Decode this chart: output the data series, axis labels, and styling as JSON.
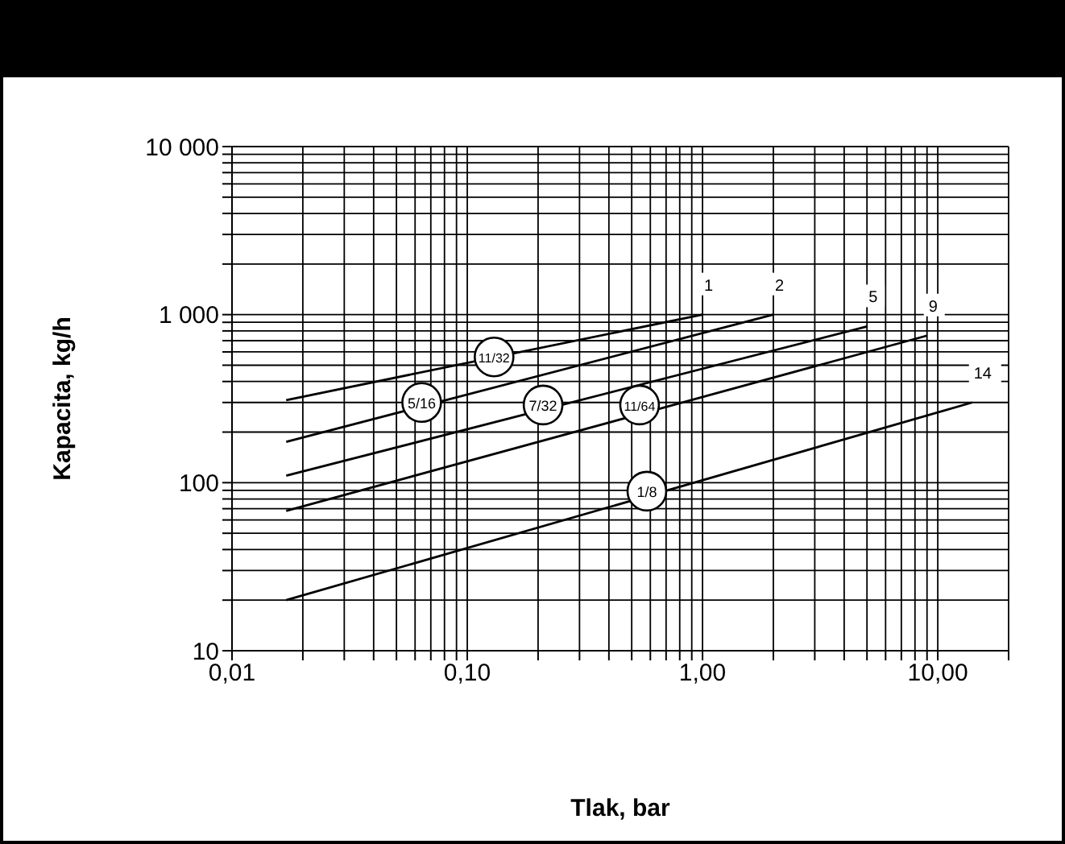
{
  "chart_data": {
    "type": "line",
    "xlabel": "Tlak, bar",
    "ylabel": "Kapacita, kg/h",
    "log": "xy",
    "grid": true,
    "marker": "none",
    "line_style": "solid",
    "xlim": [
      0.01,
      20
    ],
    "ylim": [
      10,
      10000
    ],
    "xticks": [
      {
        "value": 0.01,
        "label": "0,01"
      },
      {
        "value": 0.02,
        "label": null
      },
      {
        "value": 0.03,
        "label": null
      },
      {
        "value": 0.04,
        "label": null
      },
      {
        "value": 0.05,
        "label": null
      },
      {
        "value": 0.06,
        "label": null
      },
      {
        "value": 0.07,
        "label": null
      },
      {
        "value": 0.08,
        "label": null
      },
      {
        "value": 0.09,
        "label": null
      },
      {
        "value": 0.1,
        "label": "0,10"
      },
      {
        "value": 0.2,
        "label": null
      },
      {
        "value": 0.3,
        "label": null
      },
      {
        "value": 0.4,
        "label": null
      },
      {
        "value": 0.5,
        "label": null
      },
      {
        "value": 0.6,
        "label": null
      },
      {
        "value": 0.7,
        "label": null
      },
      {
        "value": 0.8,
        "label": null
      },
      {
        "value": 0.9,
        "label": null
      },
      {
        "value": 1,
        "label": "1,00"
      },
      {
        "value": 2,
        "label": null
      },
      {
        "value": 3,
        "label": null
      },
      {
        "value": 4,
        "label": null
      },
      {
        "value": 5,
        "label": null
      },
      {
        "value": 6,
        "label": null
      },
      {
        "value": 7,
        "label": null
      },
      {
        "value": 8,
        "label": null
      },
      {
        "value": 9,
        "label": null
      },
      {
        "value": 10,
        "label": "10,00"
      },
      {
        "value": 20,
        "label": null
      }
    ],
    "yticks": [
      10,
      {
        "value": 20,
        "label": null
      },
      {
        "value": 30,
        "label": null
      },
      {
        "value": 40,
        "label": null
      },
      {
        "value": 50,
        "label": null
      },
      {
        "value": 60,
        "label": null
      },
      {
        "value": 70,
        "label": null
      },
      {
        "value": 80,
        "label": null
      },
      {
        "value": 90,
        "label": null
      },
      100,
      {
        "value": 200,
        "label": null
      },
      {
        "value": 300,
        "label": null
      },
      {
        "value": 400,
        "label": null
      },
      {
        "value": 500,
        "label": null
      },
      {
        "value": 600,
        "label": null
      },
      {
        "value": 700,
        "label": null
      },
      {
        "value": 800,
        "label": null
      },
      {
        "value": 900,
        "label": null
      },
      {
        "value": 1000,
        "label": "1 000"
      },
      {
        "value": 2000,
        "label": null
      },
      {
        "value": 3000,
        "label": null
      },
      {
        "value": 4000,
        "label": null
      },
      {
        "value": 5000,
        "label": null
      },
      {
        "value": 6000,
        "label": null
      },
      {
        "value": 7000,
        "label": null
      },
      {
        "value": 8000,
        "label": null
      },
      {
        "value": 9000,
        "label": null
      },
      {
        "value": 10000,
        "label": "10 000"
      }
    ],
    "series": [
      {
        "name": "1",
        "color": "#000000",
        "x": [
          0.017,
          1
        ],
        "values": [
          310,
          1000
        ]
      },
      {
        "name": "2",
        "color": "#000000",
        "x": [
          0.017,
          2
        ],
        "values": [
          175,
          1000
        ]
      },
      {
        "name": "5",
        "color": "#000000",
        "x": [
          0.017,
          5
        ],
        "values": [
          110,
          850
        ]
      },
      {
        "name": "9",
        "color": "#000000",
        "x": [
          0.017,
          9
        ],
        "values": [
          68,
          750
        ]
      },
      {
        "name": "14",
        "color": "#000000",
        "x": [
          0.017,
          14
        ],
        "values": [
          20,
          300
        ]
      }
    ],
    "annotations": [
      {
        "text": "11/32",
        "x": 0.13,
        "y": 560
      },
      {
        "text": "5/16",
        "x": 0.064,
        "y": 300
      },
      {
        "text": "7/32",
        "x": 0.21,
        "y": 290
      },
      {
        "text": "11/64",
        "x": 0.54,
        "y": 290
      },
      {
        "text": "1/8",
        "x": 0.58,
        "y": 89
      }
    ]
  }
}
